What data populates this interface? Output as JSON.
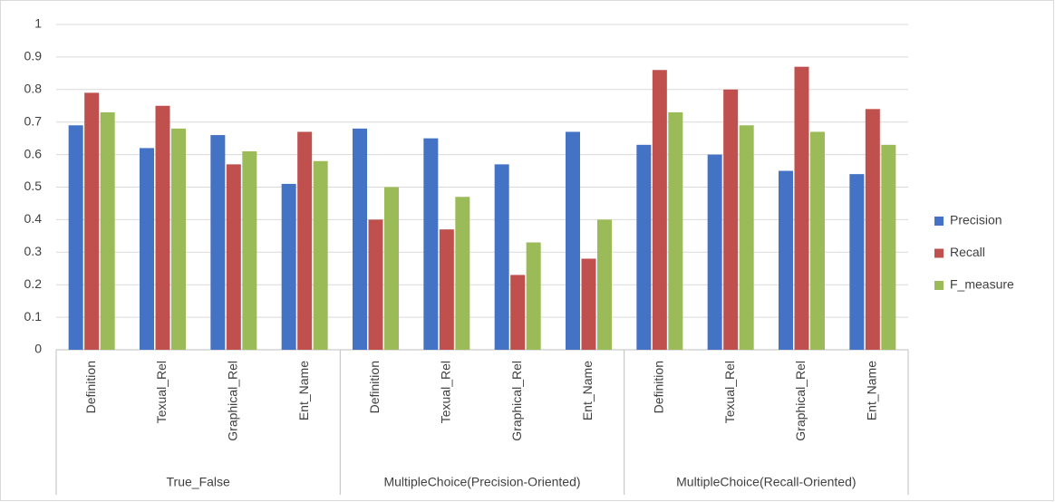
{
  "chart_data": {
    "type": "bar",
    "categories": [
      "Definition",
      "Texual_Rel",
      "Graphical_Rel",
      "Ent_Name",
      "Definition",
      "Texual_Rel",
      "Graphical_Rel",
      "Ent_Name",
      "Definition",
      "Texual_Rel",
      "Graphical_Rel",
      "Ent_Name"
    ],
    "category_groups": [
      "True_False",
      "True_False",
      "True_False",
      "True_False",
      "MultipleChoice(Precision-Oriented)",
      "MultipleChoice(Precision-Oriented)",
      "MultipleChoice(Precision-Oriented)",
      "MultipleChoice(Precision-Oriented)",
      "MultipleChoice(Recall-Oriented)",
      "MultipleChoice(Recall-Oriented)",
      "MultipleChoice(Recall-Oriented)",
      "MultipleChoice(Recall-Oriented)"
    ],
    "series": [
      {
        "name": "Precision",
        "color": "#4472c4",
        "values": [
          0.69,
          0.62,
          0.66,
          0.51,
          0.68,
          0.65,
          0.57,
          0.67,
          0.63,
          0.6,
          0.55,
          0.54
        ]
      },
      {
        "name": "Recall",
        "color": "#c0504d",
        "values": [
          0.79,
          0.75,
          0.57,
          0.67,
          0.4,
          0.37,
          0.23,
          0.28,
          0.86,
          0.8,
          0.87,
          0.74
        ]
      },
      {
        "name": "F_measure",
        "color": "#9bbb59",
        "values": [
          0.73,
          0.68,
          0.61,
          0.58,
          0.5,
          0.47,
          0.33,
          0.4,
          0.73,
          0.69,
          0.67,
          0.63
        ]
      }
    ],
    "ylim": [
      0,
      1
    ],
    "yticks": [
      0,
      0.1,
      0.2,
      0.3,
      0.4,
      0.5,
      0.6,
      0.7,
      0.8,
      0.9,
      1
    ],
    "grid": true,
    "legend": "right"
  }
}
